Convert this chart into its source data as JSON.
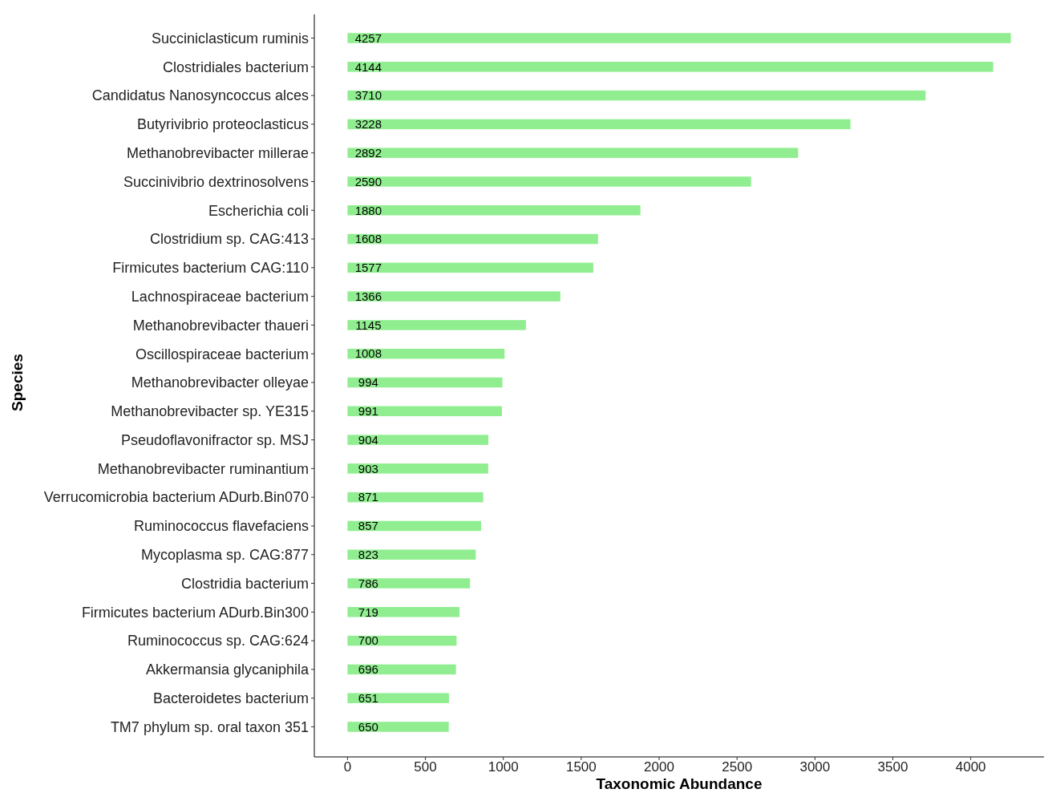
{
  "chart_data": {
    "type": "bar",
    "orientation": "horizontal",
    "xlabel": "Taxonomic Abundance",
    "ylabel": "Species",
    "categories": [
      "Succiniclasticum ruminis",
      "Clostridiales bacterium",
      "Candidatus Nanosyncoccus alces",
      "Butyrivibrio proteoclasticus",
      "Methanobrevibacter millerae",
      "Succinivibrio dextrinosolvens",
      "Escherichia coli",
      "Clostridium sp. CAG:413",
      "Firmicutes bacterium CAG:110",
      "Lachnospiraceae bacterium",
      "Methanobrevibacter thaueri",
      "Oscillospiraceae bacterium",
      "Methanobrevibacter olleyae",
      "Methanobrevibacter sp. YE315",
      "Pseudoflavonifractor sp. MSJ",
      "Methanobrevibacter ruminantium",
      "Verrucomicrobia bacterium ADurb.Bin070",
      "Ruminococcus flavefaciens",
      "Mycoplasma sp. CAG:877",
      "Clostridia bacterium",
      "Firmicutes bacterium ADurb.Bin300",
      "Ruminococcus sp. CAG:624",
      "Akkermansia glycaniphila",
      "Bacteroidetes bacterium",
      "TM7 phylum sp. oral taxon 351"
    ],
    "values": [
      4257,
      4144,
      3710,
      3228,
      2892,
      2590,
      1880,
      1608,
      1577,
      1366,
      1145,
      1008,
      994,
      991,
      904,
      903,
      871,
      857,
      823,
      786,
      719,
      700,
      696,
      651,
      650
    ],
    "color": "#90ee90",
    "data_labels": true,
    "xlim": [
      -213,
      4470
    ],
    "xticks": [
      0,
      500,
      1000,
      1500,
      2000,
      2500,
      3000,
      3500,
      4000
    ]
  }
}
